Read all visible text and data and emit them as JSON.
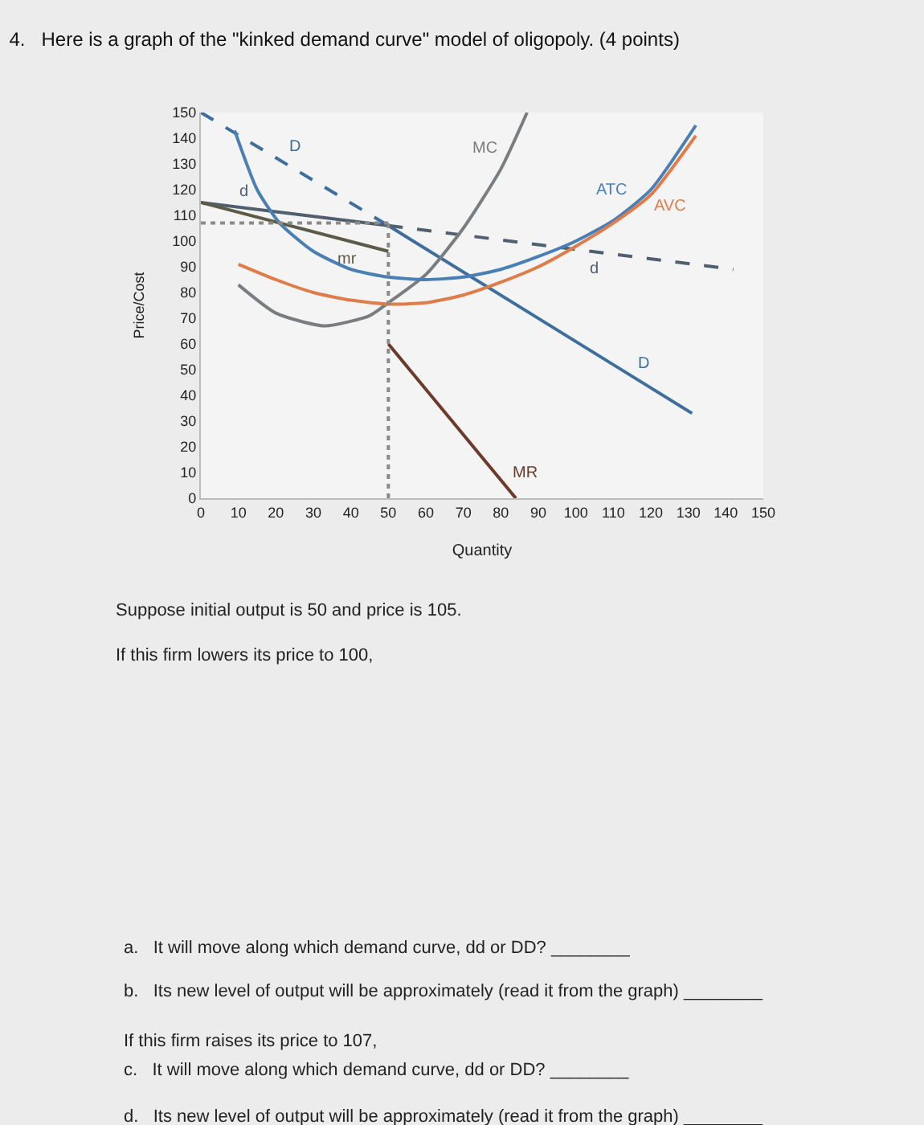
{
  "chart_data": {
    "type": "line",
    "title": "4.   Here is a graph of the \"kinked demand curve\" model of oligopoly. (4 points)",
    "xlabel": "Quantity",
    "ylabel": "Price/Cost",
    "xlim": [
      0,
      150
    ],
    "ylim": [
      0,
      150
    ],
    "xticks": [
      0,
      10,
      20,
      30,
      40,
      50,
      60,
      70,
      80,
      90,
      100,
      110,
      120,
      130,
      140,
      150
    ],
    "yticks": [
      0,
      10,
      20,
      30,
      40,
      50,
      60,
      70,
      80,
      90,
      100,
      110,
      120,
      130,
      140,
      150
    ],
    "grid": false,
    "legend": false,
    "marker": "none",
    "series": [
      {
        "name": "D",
        "color": "#3d6e9e",
        "line_style": "dashed",
        "x": [
          0,
          50
        ],
        "values": [
          150,
          106
        ]
      },
      {
        "name": "D",
        "color": "#3d6e9e",
        "line_style": "solid",
        "x": [
          50,
          131
        ],
        "values": [
          106,
          33
        ]
      },
      {
        "name": "d",
        "color": "#4f5f70",
        "line_style": "solid",
        "x": [
          0,
          50
        ],
        "values": [
          115,
          106
        ]
      },
      {
        "name": "d",
        "color": "#4f5f70",
        "line_style": "dashed",
        "x": [
          50,
          142
        ],
        "values": [
          106,
          89
        ]
      },
      {
        "name": "mr",
        "color": "#5e5a48",
        "line_style": "solid",
        "x": [
          0,
          50
        ],
        "values": [
          115,
          96
        ]
      },
      {
        "name": "MR",
        "color": "#6b3a2a",
        "line_style": "solid",
        "x": [
          50,
          84
        ],
        "values": [
          60,
          0
        ]
      },
      {
        "name": "MC",
        "color": "#7a7d80",
        "line_style": "solid",
        "x": [
          10,
          20,
          33,
          45,
          50,
          60,
          70,
          80,
          87
        ],
        "values": [
          83,
          72,
          67,
          71,
          76,
          87,
          105,
          128,
          150
        ]
      },
      {
        "name": "ATC",
        "color": "#4a7fb5",
        "line_style": "solid",
        "x": [
          9,
          15,
          21,
          30,
          40,
          50,
          60,
          70,
          80,
          90,
          100,
          110,
          120,
          132
        ],
        "values": [
          143,
          120,
          107,
          96,
          89,
          86,
          85,
          86,
          89,
          94,
          100,
          108,
          120,
          145
        ]
      },
      {
        "name": "AVC",
        "color": "#e07b4a",
        "line_style": "solid",
        "x": [
          10,
          20,
          30,
          40,
          50,
          60,
          70,
          80,
          90,
          100,
          110,
          120,
          132
        ],
        "values": [
          91,
          85,
          80,
          77,
          75.5,
          76,
          79,
          84,
          90,
          98,
          107,
          118,
          141
        ]
      },
      {
        "color": "#8a8a8a",
        "line_style": "dotted",
        "x": [
          0,
          50
        ],
        "values": [
          107,
          107
        ]
      },
      {
        "color": "#8a8a8a",
        "line_style": "dotted",
        "x": [
          50,
          50
        ],
        "values": [
          0,
          107
        ]
      }
    ],
    "annotations": [
      "Suppose initial output is 50 and price is 105.",
      "If this firm lowers its price to 100,",
      "a.   It will move along which demand curve, dd or DD? ________",
      "b.   Its new level of output will be approximately (read it from the graph) ________",
      "If this firm raises its price to 107,",
      "c.   It will move along which demand curve, dd or DD? ________",
      "d.   Its new level of output will be approximately (read it from the graph) ________"
    ]
  }
}
